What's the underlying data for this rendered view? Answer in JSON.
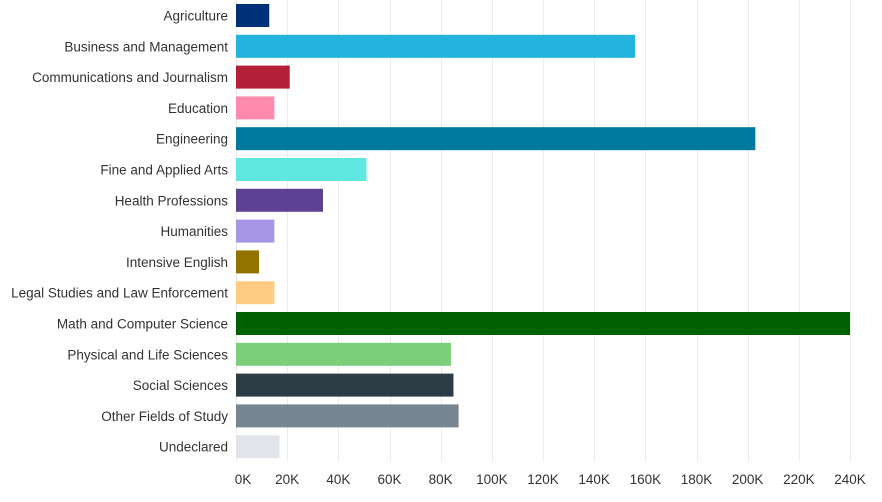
{
  "chart_data": {
    "type": "bar",
    "orientation": "horizontal",
    "title": "",
    "xlabel": "",
    "ylabel": "",
    "xlim": [
      0,
      240000
    ],
    "grid": true,
    "legend": "none",
    "categories": [
      "Agriculture",
      "Business and Management",
      "Communications and Journalism",
      "Education",
      "Engineering",
      "Fine and Applied Arts",
      "Health Professions",
      "Humanities",
      "Intensive English",
      "Legal Studies and Law Enforcement",
      "Math and Computer Science",
      "Physical and Life Sciences",
      "Social Sciences",
      "Other Fields of Study",
      "Undeclared"
    ],
    "values": [
      13000,
      156000,
      21000,
      15000,
      203000,
      51000,
      34000,
      15000,
      9000,
      15000,
      240000,
      84000,
      85000,
      87000,
      17000
    ],
    "colors": [
      "#003077",
      "#22b4de",
      "#b21f37",
      "#ff8aad",
      "#007a9c",
      "#5ee8e1",
      "#5d4293",
      "#a796e6",
      "#937300",
      "#ffcc82",
      "#006100",
      "#7ccf7a",
      "#2e3d45",
      "#778591",
      "#e1e5e9"
    ],
    "x_ticks": [
      0,
      20000,
      40000,
      60000,
      80000,
      100000,
      120000,
      140000,
      160000,
      180000,
      200000,
      220000,
      240000
    ],
    "x_tick_labels": [
      "0K",
      "20K",
      "40K",
      "60K",
      "80K",
      "100K",
      "120K",
      "140K",
      "160K",
      "180K",
      "200K",
      "220K",
      "240K"
    ]
  }
}
